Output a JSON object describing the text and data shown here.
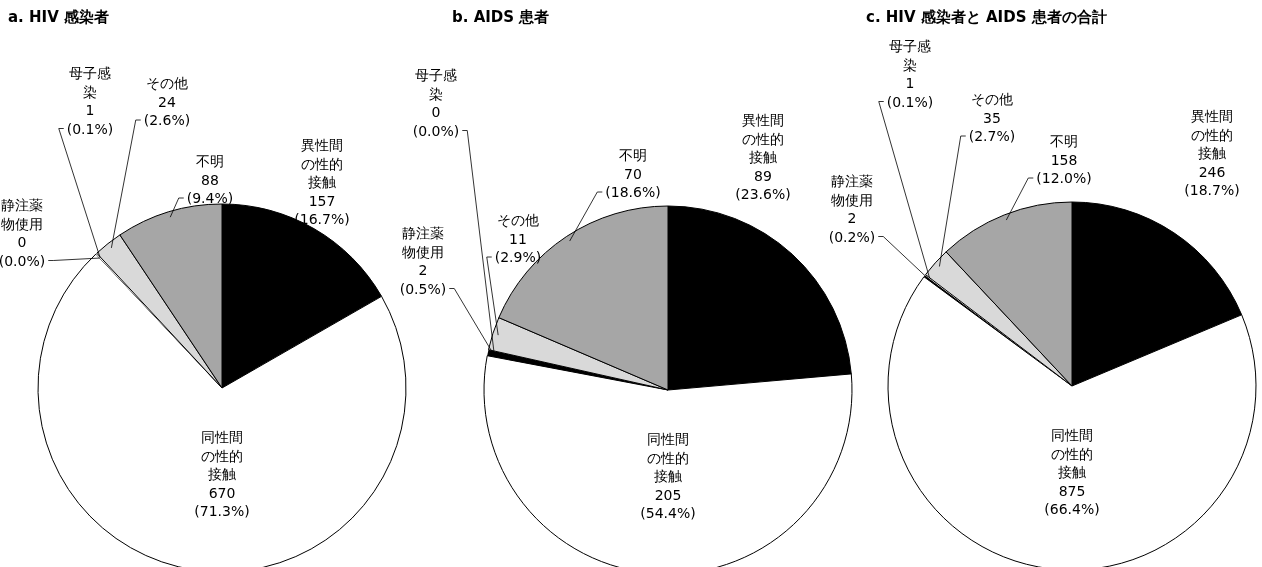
{
  "chart_data": [
    {
      "type": "pie",
      "title": "a. HIV 感染者",
      "categories": [
        "異性間の性的接触",
        "同性間の性的接触",
        "静注薬物使用",
        "母子感染",
        "その他",
        "不明"
      ],
      "values": [
        157,
        670,
        0,
        1,
        24,
        88
      ],
      "colors": [
        "#000000",
        "#ffffff",
        "#000000",
        "#ffffff",
        "#d9d9d9",
        "#a6a6a6"
      ],
      "value_labels": [
        "157 (16.7%)",
        "670 (71.3%)",
        "0 (0.0%)",
        "1 (0.1%)",
        "24 (2.6%)",
        "88 (9.4%)"
      ]
    },
    {
      "type": "pie",
      "title": "b. AIDS 患者",
      "categories": [
        "異性間の性的接触",
        "同性間の性的接触",
        "静注薬物使用",
        "母子感染",
        "その他",
        "不明"
      ],
      "values": [
        89,
        205,
        2,
        0,
        11,
        70
      ],
      "colors": [
        "#000000",
        "#ffffff",
        "#000000",
        "#ffffff",
        "#d9d9d9",
        "#a6a6a6"
      ],
      "value_labels": [
        "89 (23.6%)",
        "205 (54.4%)",
        "2 (0.5%)",
        "0 (0.0%)",
        "11 (2.9%)",
        "70 (18.6%)"
      ]
    },
    {
      "type": "pie",
      "title": "c. HIV 感染者と AIDS 患者の合計",
      "categories": [
        "異性間の性的接触",
        "同性間の性的接触",
        "静注薬物使用",
        "母子感染",
        "その他",
        "不明"
      ],
      "values": [
        246,
        875,
        2,
        1,
        35,
        158
      ],
      "colors": [
        "#000000",
        "#ffffff",
        "#000000",
        "#ffffff",
        "#d9d9d9",
        "#a6a6a6"
      ],
      "value_labels": [
        "246 (18.7%)",
        "875 (66.4%)",
        "2 (0.2%)",
        "1 (0.1%)",
        "35 (2.7%)",
        "158 (12.0%)"
      ]
    }
  ]
}
